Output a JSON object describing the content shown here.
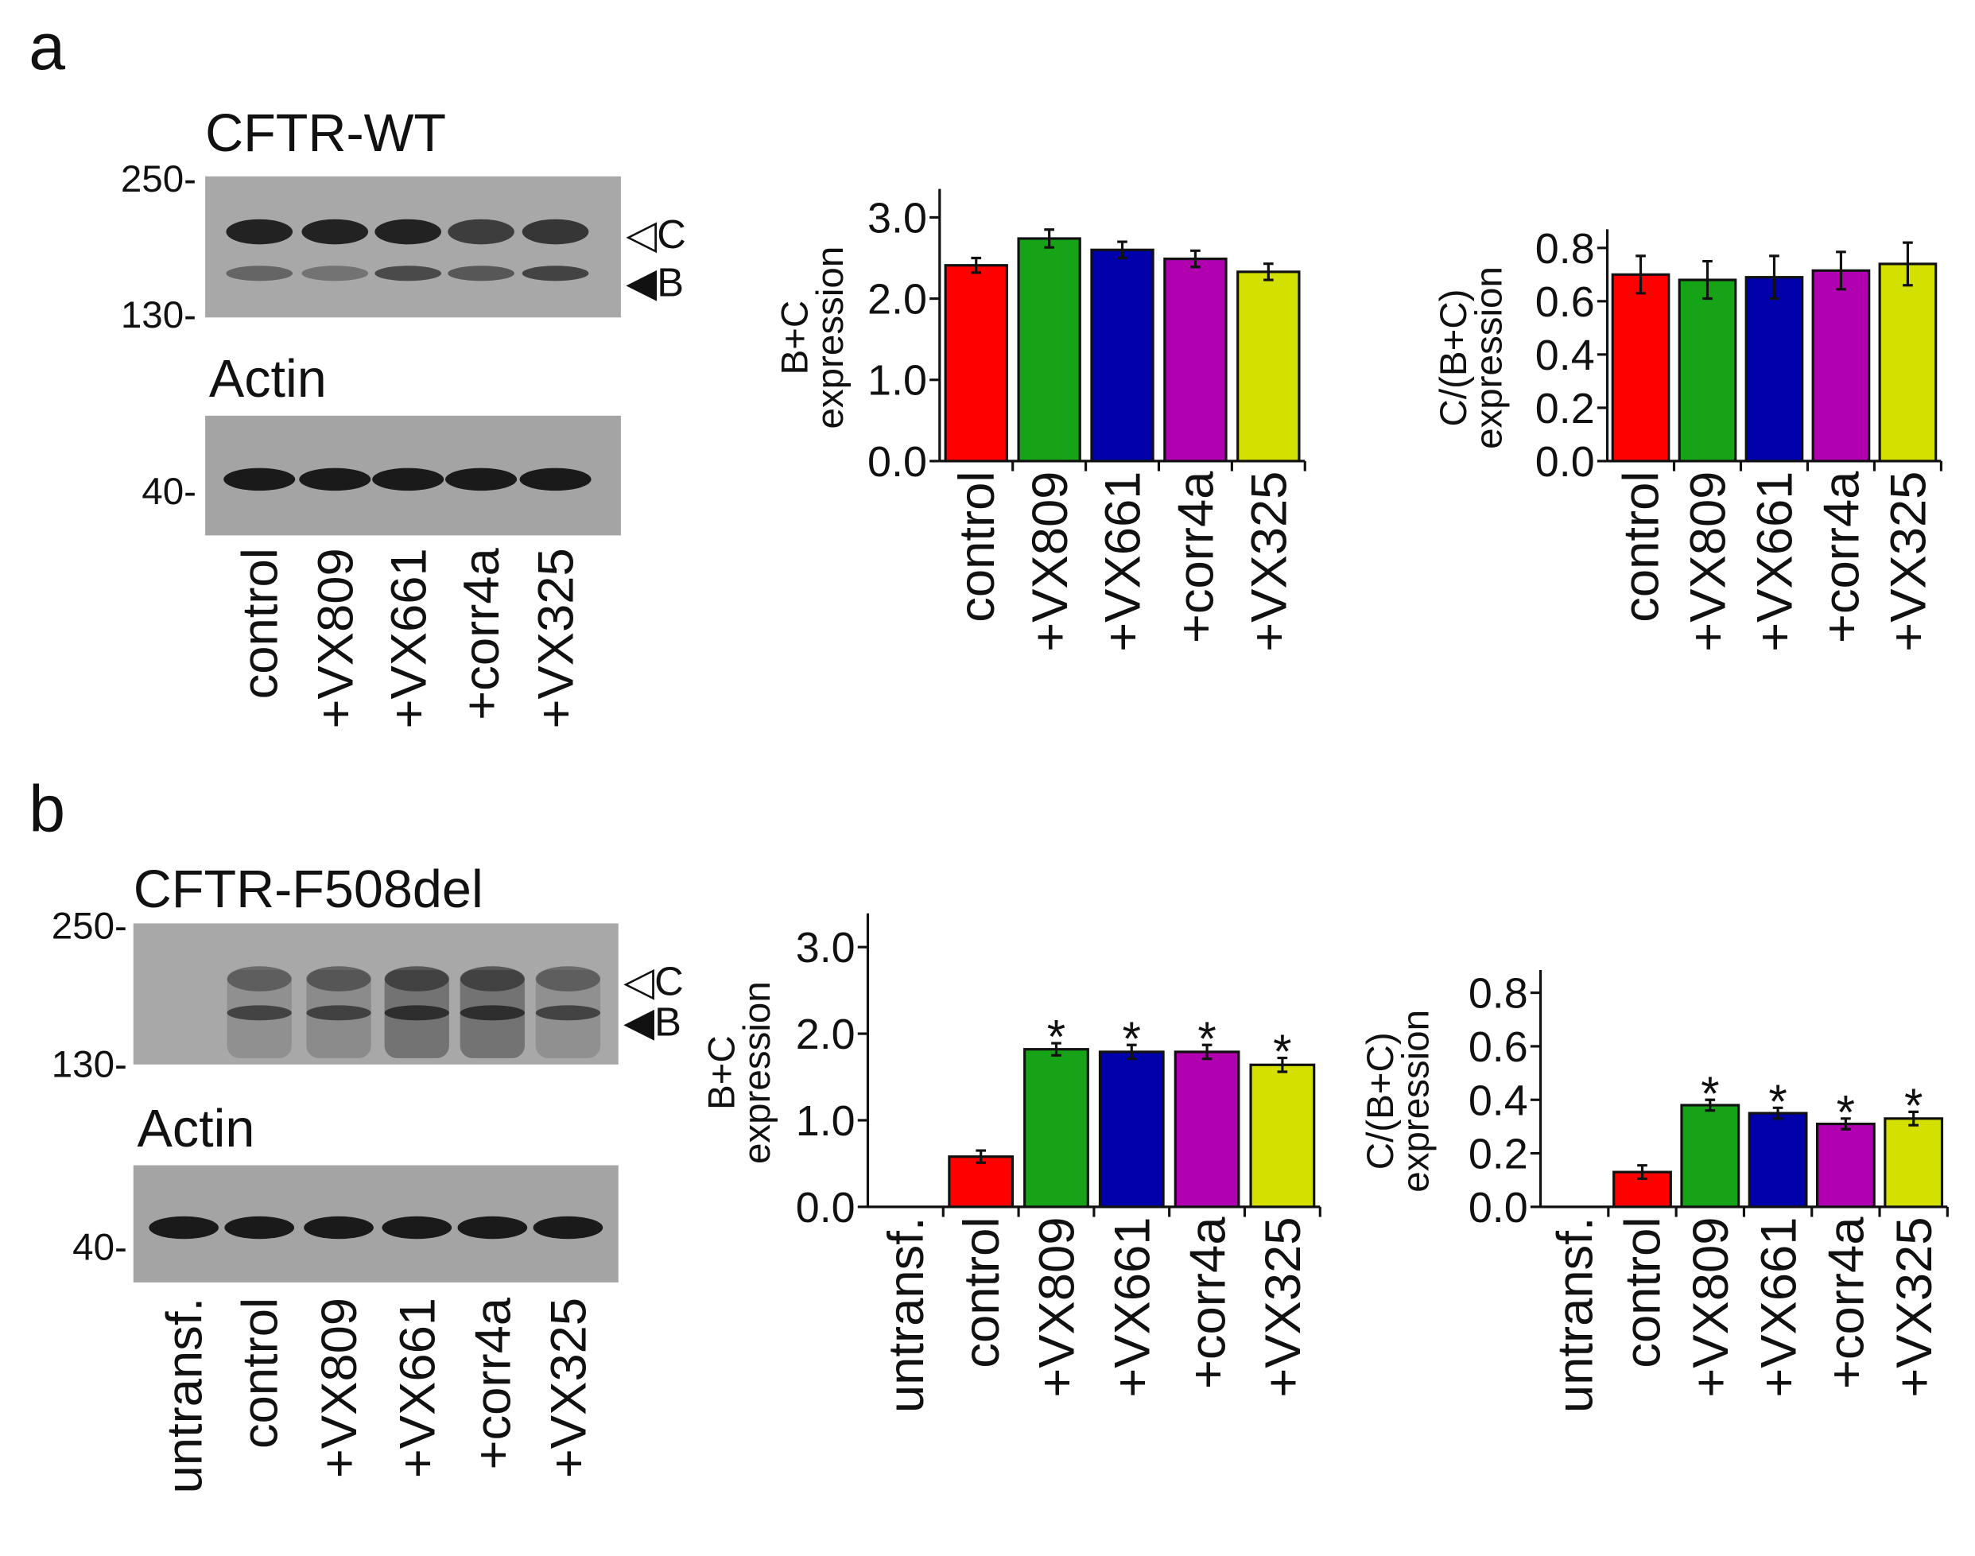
{
  "panels": [
    {
      "label": "a",
      "blot_title": "CFTR-WT",
      "loading_title": "Actin",
      "markers": [
        "250-",
        "130-",
        "40-"
      ],
      "band_labels": [
        "◁C",
        "◀B"
      ],
      "lanes": [
        "control",
        "+VX809",
        "+VX661",
        "+corr4a",
        "+VX325"
      ]
    },
    {
      "label": "b",
      "blot_title": "CFTR-F508del",
      "loading_title": "Actin",
      "markers": [
        "250-",
        "130-",
        "40-"
      ],
      "band_labels": [
        "◁C",
        "◀B"
      ],
      "lanes": [
        "untransf.",
        "control",
        "+VX809",
        "+VX661",
        "+corr4a",
        "+VX325"
      ]
    }
  ],
  "chart_data": [
    {
      "type": "bar",
      "ylabel": [
        "B+C",
        "expression"
      ],
      "categories": [
        "control",
        "+VX809",
        "+VX661",
        "+corr4a",
        "+VX325"
      ],
      "values": [
        2.41,
        2.74,
        2.6,
        2.49,
        2.33
      ],
      "errors": [
        0.09,
        0.11,
        0.1,
        0.1,
        0.1
      ],
      "colors": [
        "#ff0000",
        "#17a317",
        "#0000aa",
        "#b000b0",
        "#d4e000"
      ],
      "ylim": [
        0,
        3.35
      ],
      "yticks": [
        {
          "value": 0,
          "label": "0.0"
        },
        {
          "value": 1,
          "label": "1.0"
        },
        {
          "value": 2,
          "label": "2.0"
        },
        {
          "value": 3,
          "label": "3.0"
        }
      ]
    },
    {
      "type": "bar",
      "ylabel": [
        "C/(B+C)",
        "expression"
      ],
      "categories": [
        "control",
        "+VX809",
        "+VX661",
        "+corr4a",
        "+VX325"
      ],
      "values": [
        0.7,
        0.68,
        0.69,
        0.715,
        0.74
      ],
      "errors": [
        0.07,
        0.07,
        0.08,
        0.07,
        0.08
      ],
      "colors": [
        "#ff0000",
        "#17a317",
        "#0000aa",
        "#b000b0",
        "#d4e000"
      ],
      "ylim": [
        0,
        0.87
      ],
      "yticks": [
        {
          "value": 0,
          "label": "0.0"
        },
        {
          "value": 0.2,
          "label": "0.2"
        },
        {
          "value": 0.4,
          "label": "0.4"
        },
        {
          "value": 0.6,
          "label": "0.6"
        },
        {
          "value": 0.8,
          "label": "0.8"
        }
      ]
    },
    {
      "type": "bar",
      "ylabel": [
        "B+C",
        "expression"
      ],
      "categories": [
        "untransf.",
        "control",
        "+VX809",
        "+VX661",
        "+corr4a",
        "+VX325"
      ],
      "values": [
        null,
        0.58,
        1.82,
        1.79,
        1.79,
        1.64
      ],
      "errors": [
        null,
        0.07,
        0.07,
        0.08,
        0.08,
        0.08
      ],
      "significance": [
        null,
        null,
        "*",
        "*",
        "*",
        "*"
      ],
      "colors": [
        "#ffffff",
        "#ff0000",
        "#17a317",
        "#0000aa",
        "#b000b0",
        "#d4e000"
      ],
      "ylim": [
        0,
        3.39
      ],
      "yticks": [
        {
          "value": 0,
          "label": "0.0"
        },
        {
          "value": 1,
          "label": "1.0"
        },
        {
          "value": 2,
          "label": "2.0"
        },
        {
          "value": 3,
          "label": "3.0"
        }
      ]
    },
    {
      "type": "bar",
      "ylabel": [
        "C/(B+C)",
        "expression"
      ],
      "categories": [
        "untransf.",
        "control",
        "+VX809",
        "+VX661",
        "+corr4a",
        "+VX325"
      ],
      "values": [
        null,
        0.13,
        0.38,
        0.35,
        0.31,
        0.33
      ],
      "errors": [
        null,
        0.025,
        0.02,
        0.02,
        0.02,
        0.025
      ],
      "significance": [
        null,
        null,
        "*",
        "*",
        "*",
        "*"
      ],
      "colors": [
        "#ffffff",
        "#ff0000",
        "#17a317",
        "#0000aa",
        "#b000b0",
        "#d4e000"
      ],
      "ylim": [
        0,
        0.885
      ],
      "yticks": [
        {
          "value": 0,
          "label": "0.0"
        },
        {
          "value": 0.2,
          "label": "0.2"
        },
        {
          "value": 0.4,
          "label": "0.4"
        },
        {
          "value": 0.6,
          "label": "0.6"
        },
        {
          "value": 0.8,
          "label": "0.8"
        }
      ]
    }
  ]
}
